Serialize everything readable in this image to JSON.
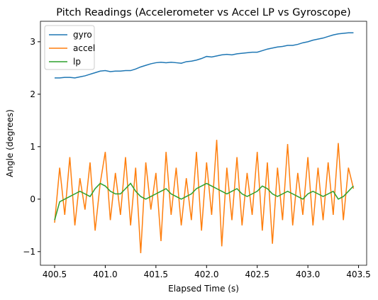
{
  "chart_data": {
    "type": "line",
    "title": "Pitch Readings (Accelerometer vs Accel LP vs Gyroscope)",
    "xlabel": "Elapsed Time (s)",
    "ylabel": "Angle (degrees)",
    "x": [
      400.5,
      400.55,
      400.6,
      400.65,
      400.7,
      400.75,
      400.8,
      400.85,
      400.9,
      400.95,
      401.0,
      401.05,
      401.1,
      401.15,
      401.2,
      401.25,
      401.3,
      401.35,
      401.4,
      401.45,
      401.5,
      401.55,
      401.6,
      401.65,
      401.7,
      401.75,
      401.8,
      401.85,
      401.9,
      401.95,
      402.0,
      402.05,
      402.1,
      402.15,
      402.2,
      402.25,
      402.3,
      402.35,
      402.4,
      402.45,
      402.5,
      402.55,
      402.6,
      402.65,
      402.7,
      402.75,
      402.8,
      402.85,
      402.9,
      402.95,
      403.0,
      403.05,
      403.1,
      403.15,
      403.2,
      403.25,
      403.3,
      403.35,
      403.4,
      403.45
    ],
    "series": [
      {
        "name": "gyro",
        "color": "#1f77b4",
        "values": [
          2.31,
          2.31,
          2.32,
          2.32,
          2.31,
          2.33,
          2.35,
          2.38,
          2.41,
          2.44,
          2.45,
          2.43,
          2.44,
          2.44,
          2.45,
          2.45,
          2.48,
          2.52,
          2.55,
          2.58,
          2.6,
          2.61,
          2.6,
          2.61,
          2.6,
          2.59,
          2.62,
          2.63,
          2.65,
          2.68,
          2.72,
          2.71,
          2.73,
          2.75,
          2.76,
          2.75,
          2.77,
          2.78,
          2.79,
          2.8,
          2.8,
          2.83,
          2.86,
          2.88,
          2.9,
          2.91,
          2.93,
          2.93,
          2.95,
          2.98,
          3.0,
          3.03,
          3.05,
          3.07,
          3.1,
          3.13,
          3.15,
          3.16,
          3.17,
          3.17
        ]
      },
      {
        "name": "accel",
        "color": "#ff7f0e",
        "values": [
          -0.45,
          0.6,
          -0.3,
          0.8,
          -0.5,
          0.4,
          -0.2,
          0.7,
          -0.6,
          0.3,
          0.9,
          -0.4,
          0.5,
          -0.3,
          0.8,
          -0.5,
          0.6,
          -1.03,
          0.7,
          -0.2,
          0.5,
          -0.8,
          0.9,
          -0.3,
          0.6,
          -0.5,
          0.4,
          -0.4,
          0.9,
          -0.6,
          0.7,
          -0.3,
          1.13,
          -0.9,
          0.6,
          -0.4,
          0.8,
          -0.5,
          0.5,
          -0.3,
          0.9,
          -0.6,
          0.7,
          -0.85,
          0.6,
          -0.4,
          1.05,
          -0.5,
          0.5,
          -0.3,
          0.8,
          -0.5,
          0.6,
          -0.4,
          0.7,
          -0.3,
          1.07,
          -0.4,
          0.6,
          0.2
        ]
      },
      {
        "name": "lp",
        "color": "#2ca02c",
        "values": [
          -0.4,
          -0.05,
          0.0,
          0.05,
          0.1,
          0.15,
          0.1,
          0.05,
          0.2,
          0.3,
          0.25,
          0.15,
          0.1,
          0.1,
          0.2,
          0.3,
          0.15,
          0.05,
          0.0,
          0.05,
          0.1,
          0.15,
          0.2,
          0.1,
          0.05,
          0.0,
          0.05,
          0.1,
          0.2,
          0.25,
          0.3,
          0.25,
          0.2,
          0.15,
          0.1,
          0.15,
          0.2,
          0.1,
          0.05,
          0.1,
          0.15,
          0.25,
          0.2,
          0.1,
          0.05,
          0.1,
          0.15,
          0.1,
          0.05,
          0.0,
          0.1,
          0.15,
          0.1,
          0.05,
          0.1,
          0.15,
          0.0,
          0.05,
          0.15,
          0.25
        ]
      }
    ],
    "xlim": [
      400.36,
      403.58
    ],
    "ylim": [
      -1.26,
      3.39
    ],
    "xticks": [
      400.5,
      {
        "value": 401.0,
        "label": "401.0"
      },
      401.5,
      {
        "value": 402.0,
        "label": "402.0"
      },
      402.5,
      {
        "value": 403.0,
        "label": "403.0"
      },
      403.5
    ],
    "yticks": [
      {
        "value": -1,
        "label": "−1"
      },
      0,
      1,
      2,
      3
    ],
    "legend": "upper left"
  }
}
